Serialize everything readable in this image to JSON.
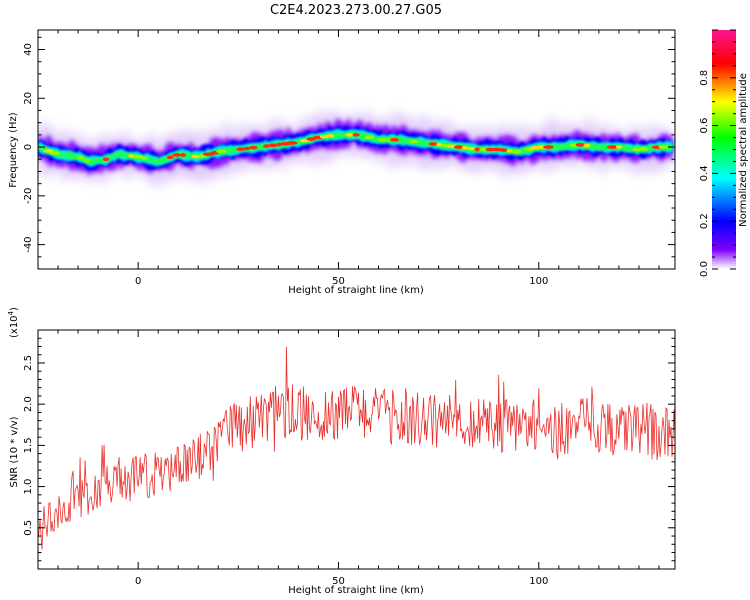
{
  "title": "C2E4.2023.273.00.27.G05",
  "chart_data": [
    {
      "type": "heatmap",
      "name": "spectrogram",
      "xlabel": "Height of straight line (km)",
      "ylabel": "Frequency (Hz)",
      "xlim": [
        -25,
        134
      ],
      "ylim": [
        -50,
        48
      ],
      "xticks": [
        0,
        50,
        100
      ],
      "yticks": [
        -40,
        -20,
        0,
        20,
        40
      ],
      "colorbar": {
        "label": "Normalized spectral amplitude",
        "range": [
          0,
          1
        ],
        "ticks": [
          0.0,
          0.2,
          0.4,
          0.6,
          0.8
        ],
        "colormap": "rainbow",
        "colors": [
          "#ffffff",
          "#7f00ff",
          "#0000ff",
          "#00ffff",
          "#00ff00",
          "#ffff00",
          "#ff0000",
          "#ff1493"
        ]
      },
      "ridge": {
        "x": [
          -25,
          -20,
          -15,
          -12,
          -8,
          -5,
          0,
          5,
          10,
          15,
          20,
          25,
          30,
          35,
          40,
          45,
          50,
          55,
          60,
          65,
          70,
          75,
          80,
          85,
          90,
          95,
          100,
          105,
          110,
          115,
          120,
          125,
          130,
          134
        ],
        "freq": [
          0,
          -3,
          -4,
          -6,
          -5,
          -3,
          -4,
          -6,
          -3,
          -4,
          -2,
          -1,
          0,
          1,
          2,
          4,
          5,
          5,
          3,
          3,
          2,
          1,
          0,
          -1,
          -1,
          -2,
          0,
          0,
          1,
          0,
          0,
          -1,
          0,
          0
        ]
      }
    },
    {
      "type": "line",
      "name": "snr",
      "xlabel": "Height of straight line (km)",
      "ylabel": "SNR (10 * v/v)",
      "scale_label": "(x10",
      "scale_exp": "4",
      "scale_close": ")",
      "xlim": [
        -25,
        134
      ],
      "ylim": [
        0,
        2.9
      ],
      "xticks": [
        0,
        50,
        100
      ],
      "yticks": [
        0.5,
        1.0,
        1.5,
        2.0,
        2.5
      ],
      "ytick_labels": [
        "0.5",
        "1.0",
        "1.5",
        "2.0",
        "2.5"
      ],
      "color": "#e8302c",
      "trend": {
        "x": [
          -25,
          -20,
          -15,
          -10,
          -5,
          0,
          5,
          10,
          15,
          20,
          25,
          30,
          35,
          40,
          45,
          50,
          55,
          60,
          65,
          70,
          75,
          80,
          85,
          90,
          95,
          100,
          105,
          110,
          115,
          120,
          125,
          130,
          134
        ],
        "y": [
          0.5,
          0.7,
          0.85,
          0.95,
          1.05,
          1.1,
          1.15,
          1.2,
          1.35,
          1.55,
          1.75,
          1.85,
          1.9,
          1.9,
          1.85,
          1.9,
          1.95,
          1.85,
          1.85,
          1.8,
          1.8,
          1.8,
          1.75,
          1.75,
          1.75,
          1.75,
          1.7,
          1.75,
          1.75,
          1.7,
          1.7,
          1.65,
          1.6
        ]
      }
    }
  ]
}
